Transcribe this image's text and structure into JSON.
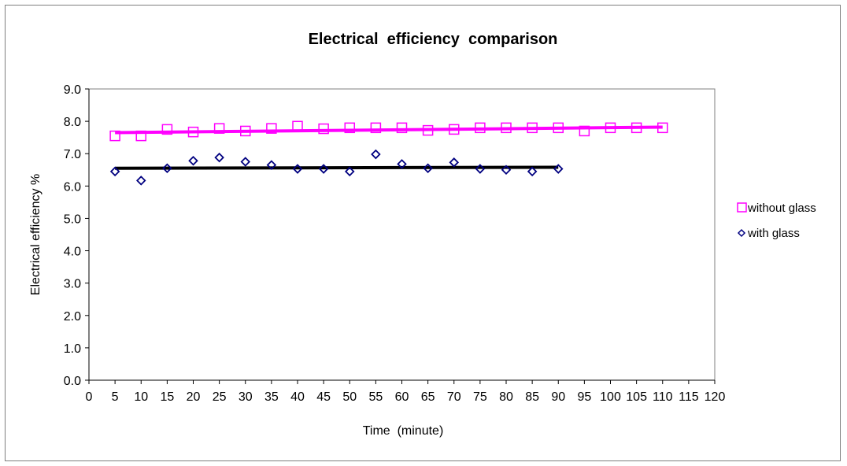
{
  "chart_data": {
    "type": "scatter",
    "title": "Electrical  efficiency  comparison",
    "xlabel": "Time  (minute)",
    "ylabel": "Electrical efficiency %",
    "xlim": [
      0,
      120
    ],
    "ylim": [
      0,
      9
    ],
    "x_ticks": [
      "0",
      "5",
      "10",
      "15",
      "20",
      "25",
      "30",
      "35",
      "40",
      "45",
      "50",
      "55",
      "60",
      "65",
      "70",
      "75",
      "80",
      "85",
      "90",
      "95",
      "100",
      "105",
      "110",
      "115",
      "120"
    ],
    "y_ticks": [
      "0.0",
      "1.0",
      "2.0",
      "3.0",
      "4.0",
      "5.0",
      "6.0",
      "7.0",
      "8.0",
      "9.0"
    ],
    "grid": false,
    "legend_position": "right",
    "series": [
      {
        "name": "without glass",
        "marker": "square",
        "color": "#ff00ff",
        "x": [
          5,
          10,
          15,
          20,
          25,
          30,
          35,
          40,
          45,
          50,
          55,
          60,
          65,
          70,
          75,
          80,
          85,
          90,
          95,
          100,
          105,
          110
        ],
        "y": [
          7.55,
          7.55,
          7.75,
          7.67,
          7.78,
          7.7,
          7.78,
          7.85,
          7.77,
          7.8,
          7.8,
          7.8,
          7.72,
          7.75,
          7.8,
          7.8,
          7.8,
          7.8,
          7.7,
          7.8,
          7.8,
          7.8
        ],
        "trendline": {
          "x": [
            5,
            110
          ],
          "y": [
            7.65,
            7.82
          ],
          "color": "#ff00ff"
        }
      },
      {
        "name": "with glass",
        "marker": "diamond",
        "color": "#000080",
        "x": [
          5,
          10,
          15,
          20,
          25,
          30,
          35,
          40,
          45,
          50,
          55,
          60,
          65,
          70,
          75,
          80,
          85,
          90
        ],
        "y": [
          6.45,
          6.17,
          6.55,
          6.78,
          6.88,
          6.75,
          6.65,
          6.53,
          6.53,
          6.45,
          6.98,
          6.68,
          6.55,
          6.73,
          6.53,
          6.5,
          6.45,
          6.53
        ],
        "trendline": {
          "x": [
            5,
            90
          ],
          "y": [
            6.55,
            6.58
          ],
          "color": "#000000"
        }
      }
    ]
  }
}
